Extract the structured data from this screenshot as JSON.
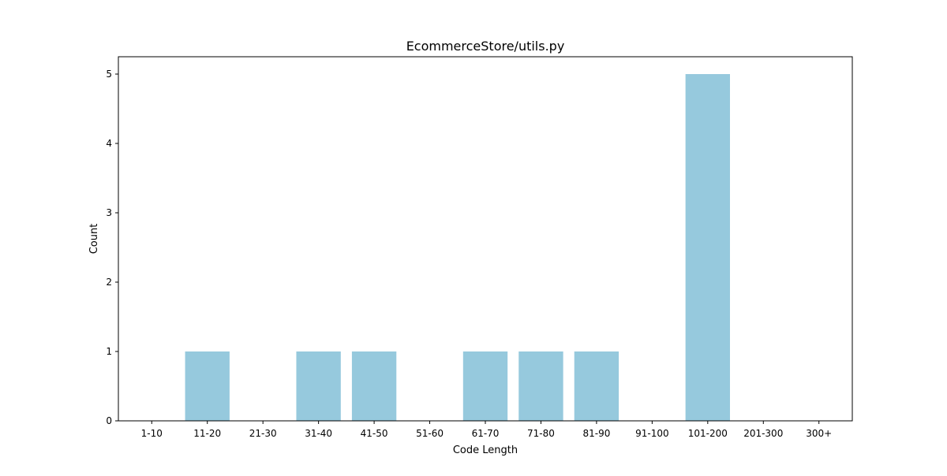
{
  "chart_data": {
    "type": "bar",
    "title": "EcommerceStore/utils.py",
    "xlabel": "Code Length",
    "ylabel": "Count",
    "categories": [
      "1-10",
      "11-20",
      "21-30",
      "31-40",
      "41-50",
      "51-60",
      "61-70",
      "71-80",
      "81-90",
      "91-100",
      "101-200",
      "201-300",
      "300+"
    ],
    "values": [
      0,
      1,
      0,
      1,
      1,
      0,
      1,
      1,
      1,
      0,
      5,
      0,
      0
    ],
    "ylim": [
      0,
      5.25
    ],
    "yticks": [
      0,
      1,
      2,
      3,
      4,
      5
    ],
    "bar_color": "#96c9dd",
    "grid": false,
    "legend": "none"
  }
}
